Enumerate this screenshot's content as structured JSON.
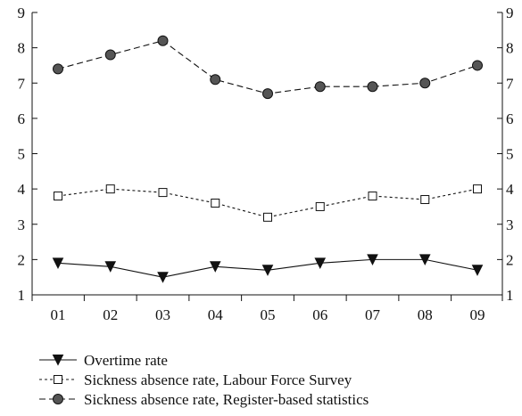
{
  "chart_data": {
    "type": "line",
    "title": "",
    "xlabel": "",
    "ylabel": "",
    "categories": [
      "01",
      "02",
      "03",
      "04",
      "05",
      "06",
      "07",
      "08",
      "09"
    ],
    "ylim": [
      1,
      9
    ],
    "yticks": [
      "1",
      "2",
      "3",
      "4",
      "5",
      "6",
      "7",
      "8",
      "9"
    ],
    "secondary_axis_ticks": [
      "1",
      "2",
      "3",
      "4",
      "5",
      "6",
      "7",
      "8",
      "9"
    ],
    "grid": false,
    "legend_position": "bottom",
    "series": [
      {
        "name": "Overtime rate",
        "marker": "triangle-down-filled",
        "line_style": "solid",
        "values": [
          1.9,
          1.8,
          1.5,
          1.8,
          1.7,
          1.9,
          2.0,
          2.0,
          1.7
        ]
      },
      {
        "name": "Sickness absence rate, Labour Force Survey",
        "marker": "square-open",
        "line_style": "dotted",
        "values": [
          3.8,
          4.0,
          3.9,
          3.6,
          3.2,
          3.5,
          3.8,
          3.7,
          4.0
        ]
      },
      {
        "name": "Sickness absence rate, Register-based statistics",
        "marker": "circle-filled",
        "line_style": "dashed",
        "values": [
          7.4,
          7.8,
          8.2,
          7.1,
          6.7,
          6.9,
          6.9,
          7.0,
          7.5
        ]
      }
    ],
    "colors": {
      "line": "#111111",
      "marker_fill": "#555555",
      "open_marker_fill": "#ffffff"
    }
  }
}
